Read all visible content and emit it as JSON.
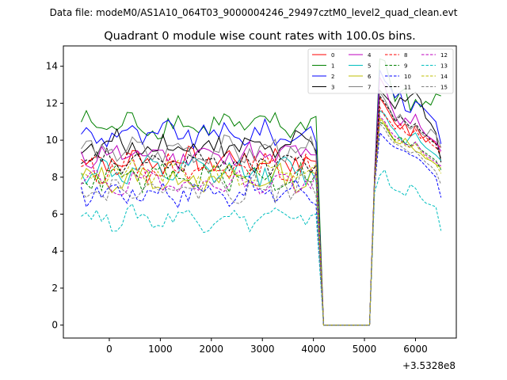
{
  "figure": {
    "suptitle": "Data file: modeM0/AS1A10_064T03_9000004246_29497cztM0_level2_quad_clean.evt"
  },
  "chart_data": {
    "type": "line",
    "title": "Quadrant 0 module wise count rates with 100.0s bins.",
    "xlabel": "",
    "ylabel": "",
    "x_offset_label": "+3.5328e8",
    "xlim": [
      -900,
      6800
    ],
    "ylim": [
      -0.7,
      15.1
    ],
    "xticks": [
      0,
      1000,
      2000,
      3000,
      4000,
      5000,
      6000
    ],
    "yticks": [
      0,
      2,
      4,
      6,
      8,
      10,
      12,
      14
    ],
    "legend_loc": "upper right",
    "legend_ncol": 4,
    "gap": {
      "x_end": 4100,
      "x_resume": 5200,
      "zero_start": 4200,
      "zero_end": 5100
    },
    "x_first_segment": {
      "start": -550,
      "end": 4100,
      "step": 100
    },
    "x_second_segment": {
      "start": 5200,
      "end": 6500,
      "step": 100
    },
    "series": [
      {
        "name": "0",
        "color": "#ff0000",
        "dash": "solid",
        "first_seg_level": 8.9,
        "second_seg": [
          7.9,
          12.3,
          11.9,
          11.4,
          10.9,
          10.6,
          10.9,
          10.2,
          10.8,
          10.3,
          9.9,
          10.1,
          9.8,
          9.6
        ]
      },
      {
        "name": "1",
        "color": "#008000",
        "dash": "solid",
        "first_seg_level": 10.8,
        "second_seg": [
          8.2,
          14.4,
          14.3,
          13.2,
          12.1,
          12.6,
          12.8,
          11.6,
          12.2,
          11.8,
          12.1,
          11.9,
          12.5,
          12.4
        ]
      },
      {
        "name": "2",
        "color": "#0000ff",
        "dash": "solid",
        "first_seg_level": 10.3,
        "second_seg": [
          8.1,
          13.8,
          13.2,
          12.9,
          12.3,
          12.6,
          11.6,
          11.5,
          12.1,
          11.9,
          11.6,
          11.3,
          11.0,
          9.8
        ]
      },
      {
        "name": "3",
        "color": "#000000",
        "dash": "solid",
        "first_seg_level": 9.7,
        "second_seg": [
          8.0,
          12.7,
          12.4,
          12.1,
          11.7,
          12.3,
          12.1,
          12.4,
          12.6,
          12.2,
          11.2,
          10.9,
          10.4,
          8.8
        ]
      },
      {
        "name": "4",
        "color": "#bf00bf",
        "dash": "solid",
        "first_seg_level": 9.2,
        "second_seg": [
          8.1,
          13.4,
          12.9,
          12.0,
          11.3,
          10.8,
          11.2,
          10.9,
          11.4,
          10.7,
          10.3,
          10.1,
          9.9,
          9.4
        ]
      },
      {
        "name": "5",
        "color": "#00bfbf",
        "dash": "solid",
        "first_seg_level": 8.3,
        "second_seg": [
          7.8,
          11.6,
          11.4,
          10.8,
          10.5,
          10.1,
          9.8,
          10.2,
          10.4,
          9.9,
          9.6,
          9.4,
          9.2,
          8.9
        ]
      },
      {
        "name": "6",
        "color": "#bfbf00",
        "dash": "solid",
        "first_seg_level": 7.9,
        "second_seg": [
          7.7,
          11.2,
          10.9,
          10.4,
          9.9,
          9.8,
          10.1,
          9.7,
          9.4,
          9.3,
          9.0,
          8.9,
          8.7,
          8.5
        ]
      },
      {
        "name": "7",
        "color": "#808080",
        "dash": "solid",
        "first_seg_level": 9.4,
        "second_seg": [
          8.0,
          12.6,
          12.2,
          11.6,
          11.1,
          11.4,
          10.9,
          10.6,
          10.8,
          10.4,
          10.2,
          10.6,
          10.3,
          9.6
        ]
      },
      {
        "name": "8",
        "color": "#ff0000",
        "dash": "dashed",
        "first_seg_level": 8.5,
        "second_seg": [
          7.9,
          11.8,
          11.3,
          11.0,
          10.6,
          10.9,
          10.4,
          10.2,
          10.6,
          10.1,
          10.2,
          9.8,
          9.6,
          9.3
        ]
      },
      {
        "name": "9",
        "color": "#008000",
        "dash": "dashed",
        "first_seg_level": 8.0,
        "second_seg": [
          7.7,
          11.0,
          10.8,
          10.3,
          10.0,
          10.2,
          9.8,
          9.7,
          9.9,
          9.5,
          9.3,
          9.1,
          8.9,
          8.4
        ]
      },
      {
        "name": "10",
        "color": "#0000ff",
        "dash": "dashed",
        "first_seg_level": 7.2,
        "second_seg": [
          7.5,
          10.4,
          10.1,
          9.8,
          9.6,
          9.5,
          9.4,
          9.2,
          9.1,
          8.9,
          8.6,
          8.3,
          8.0,
          6.9
        ]
      },
      {
        "name": "11",
        "color": "#000000",
        "dash": "dashed",
        "first_seg_level": 8.8,
        "second_seg": [
          7.9,
          12.4,
          12.0,
          11.6,
          11.0,
          11.3,
          11.0,
          10.7,
          10.9,
          10.5,
          10.3,
          10.0,
          9.8,
          9.0
        ]
      },
      {
        "name": "12",
        "color": "#bf00bf",
        "dash": "dashed",
        "first_seg_level": 7.7,
        "second_seg": [
          7.7,
          11.3,
          11.0,
          10.5,
          10.2,
          10.0,
          9.8,
          9.6,
          9.9,
          9.5,
          9.2,
          9.0,
          8.8,
          8.6
        ]
      },
      {
        "name": "13",
        "color": "#00bfbf",
        "dash": "dashed",
        "first_seg_level": 5.8,
        "second_seg": [
          7.2,
          8.1,
          8.4,
          7.5,
          7.3,
          7.2,
          7.0,
          7.6,
          7.4,
          6.9,
          6.6,
          6.5,
          6.4,
          5.1
        ]
      },
      {
        "name": "14",
        "color": "#bfbf00",
        "dash": "dashed",
        "first_seg_level": 8.1,
        "second_seg": [
          7.8,
          11.1,
          10.8,
          10.3,
          9.9,
          10.0,
          9.7,
          9.6,
          9.8,
          9.4,
          9.1,
          8.9,
          8.7,
          8.2
        ]
      },
      {
        "name": "15",
        "color": "#808080",
        "dash": "dashed",
        "first_seg_level": 7.4,
        "second_seg": [
          7.6,
          10.9,
          10.6,
          10.1,
          9.8,
          9.7,
          9.5,
          9.3,
          9.4,
          9.1,
          8.8,
          8.6,
          8.3,
          7.6
        ]
      }
    ]
  }
}
